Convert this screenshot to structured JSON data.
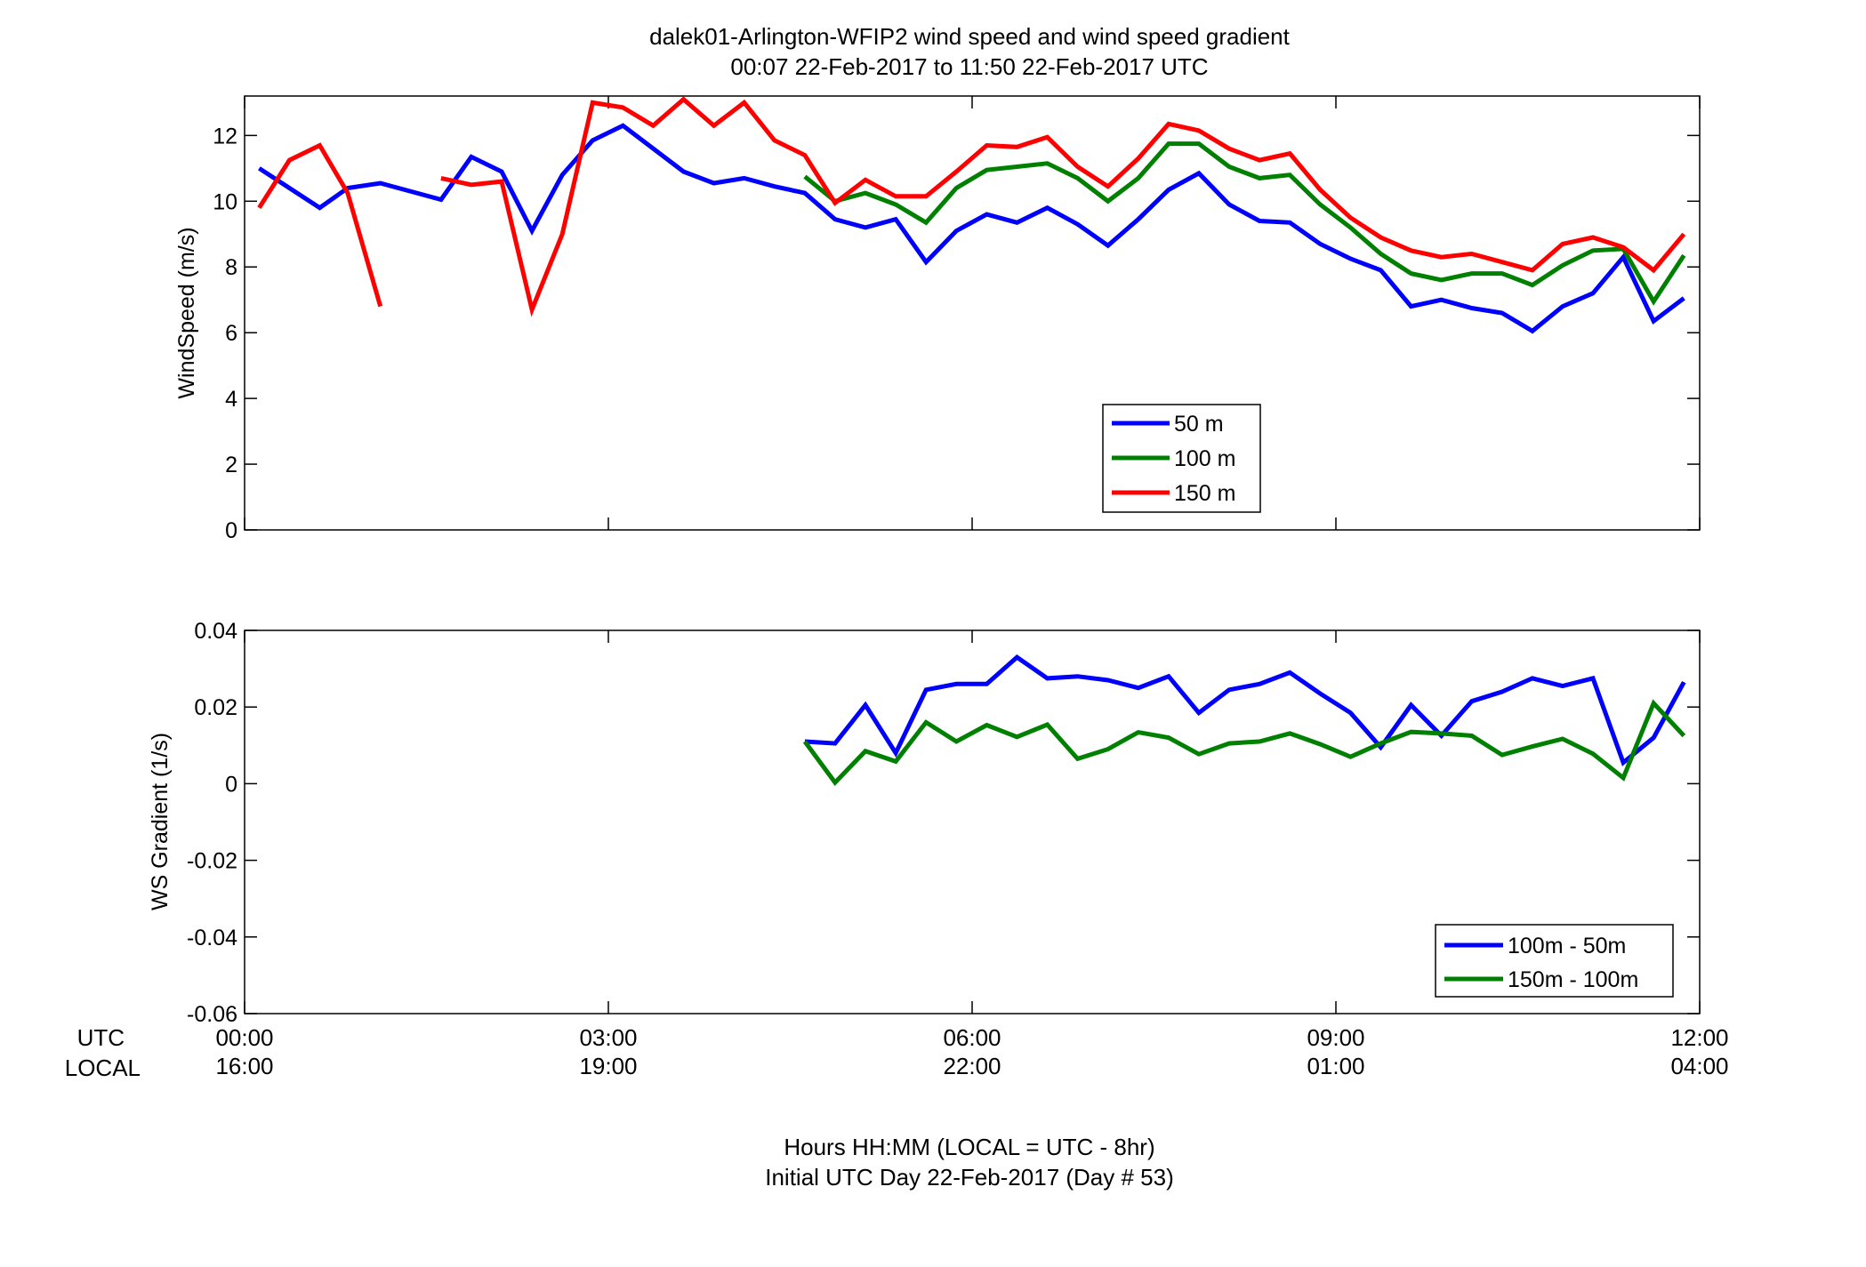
{
  "title_line1": "dalek01-Arlington-WFIP2  wind speed and wind speed gradient",
  "title_line2": "00:07 22-Feb-2017 to 11:50 22-Feb-2017  UTC",
  "xlabel_line1": "Hours HH:MM  (LOCAL = UTC - 8hr)",
  "xlabel_line2": "Initial UTC Day 22-Feb-2017 (Day # 53)",
  "utc_label": "UTC",
  "local_label": "LOCAL",
  "x_ticks_utc": [
    "00:00",
    "03:00",
    "06:00",
    "09:00",
    "12:00"
  ],
  "x_ticks_local": [
    "16:00",
    "19:00",
    "22:00",
    "01:00",
    "04:00"
  ],
  "colors": {
    "blue": "#0000ff",
    "green": "#008000",
    "red": "#ff0000"
  },
  "chart_data": [
    {
      "type": "line",
      "ylabel": "WindSpeed (m/s)",
      "ylim": [
        0,
        13.2
      ],
      "yticks": [
        0,
        2,
        4,
        6,
        8,
        10,
        12
      ],
      "xlim_hours": [
        0,
        12
      ],
      "legend_position": "lower-right",
      "series": [
        {
          "name": "50 m",
          "color": "#0000ff",
          "x": [
            0.12,
            0.37,
            0.62,
            0.85,
            1.12,
            1.62,
            1.87,
            2.12,
            2.37,
            2.62,
            2.87,
            3.12,
            3.62,
            3.87,
            4.12,
            4.37,
            4.62,
            4.87,
            5.12,
            5.37,
            5.62,
            5.87,
            6.12,
            6.37,
            6.62,
            6.87,
            7.12,
            7.37,
            7.62,
            7.87,
            8.12,
            8.37,
            8.62,
            8.87,
            9.12,
            9.37,
            9.62,
            9.87,
            10.12,
            10.37,
            10.62,
            10.87,
            11.12,
            11.37,
            11.62,
            11.87
          ],
          "y": [
            11.0,
            10.4,
            9.8,
            10.4,
            10.55,
            10.05,
            11.35,
            10.9,
            9.1,
            10.8,
            11.85,
            12.3,
            10.9,
            10.55,
            10.7,
            10.45,
            10.25,
            9.45,
            9.2,
            9.45,
            8.15,
            9.1,
            9.6,
            9.35,
            9.8,
            9.3,
            8.65,
            9.45,
            10.35,
            10.85,
            9.9,
            9.4,
            9.35,
            8.7,
            8.25,
            7.9,
            6.8,
            7.0,
            6.75,
            6.6,
            6.05,
            6.8,
            7.2,
            8.3,
            6.35,
            7.05
          ]
        },
        {
          "name": "100 m",
          "color": "#008000",
          "x": [
            4.62,
            4.87,
            5.12,
            5.37,
            5.62,
            5.87,
            6.12,
            6.37,
            6.62,
            6.87,
            7.12,
            7.37,
            7.62,
            7.87,
            8.12,
            8.37,
            8.62,
            8.87,
            9.12,
            9.37,
            9.62,
            9.87,
            10.12,
            10.37,
            10.62,
            10.87,
            11.12,
            11.37,
            11.62,
            11.87
          ],
          "y": [
            10.75,
            10.0,
            10.25,
            9.9,
            9.35,
            10.4,
            10.95,
            11.05,
            11.15,
            10.7,
            10.0,
            10.7,
            11.75,
            11.75,
            11.05,
            10.7,
            10.8,
            9.9,
            9.2,
            8.4,
            7.8,
            7.6,
            7.8,
            7.8,
            7.45,
            8.05,
            8.5,
            8.55,
            6.95,
            8.35
          ]
        },
        {
          "name": "150 m",
          "color": "#ff0000",
          "x": [
            [
              0.12,
              0.37,
              0.62,
              0.85,
              1.12
            ],
            [
              1.62,
              1.87,
              2.12,
              2.37,
              2.62,
              2.87,
              3.12,
              3.37,
              3.62,
              3.87,
              4.12,
              4.37,
              4.62,
              4.87,
              5.12,
              5.37,
              5.62,
              5.87,
              6.12,
              6.37,
              6.62,
              6.87,
              7.12,
              7.37,
              7.62,
              7.87,
              8.12,
              8.37,
              8.62,
              8.87,
              9.12,
              9.37,
              9.62,
              9.87,
              10.12,
              10.37,
              10.62,
              10.87,
              11.12,
              11.37,
              11.62,
              11.87
            ]
          ],
          "y": [
            [
              9.8,
              11.25,
              11.7,
              10.25,
              6.8
            ],
            [
              10.7,
              10.5,
              10.6,
              6.7,
              9.0,
              13.0,
              12.85,
              12.3,
              13.1,
              12.3,
              13.0,
              11.85,
              11.4,
              9.95,
              10.65,
              10.15,
              10.15,
              10.9,
              11.7,
              11.65,
              11.95,
              11.05,
              10.45,
              11.3,
              12.35,
              12.15,
              11.6,
              11.25,
              11.45,
              10.35,
              9.5,
              8.9,
              8.5,
              8.3,
              8.4,
              8.15,
              7.9,
              8.7,
              8.9,
              8.6,
              7.9,
              9.0
            ]
          ]
        }
      ]
    },
    {
      "type": "line",
      "ylabel": "WS Gradient (1/s)",
      "ylim": [
        -0.06,
        0.04
      ],
      "yticks": [
        -0.06,
        -0.04,
        -0.02,
        0,
        0.02,
        0.04
      ],
      "ytick_labels": [
        "-0.06",
        "-0.04",
        "-0.02",
        "0",
        "0.02",
        "0.04"
      ],
      "xlim_hours": [
        0,
        12
      ],
      "legend_position": "lower-right",
      "series": [
        {
          "name": "100m - 50m",
          "color": "#0000ff",
          "x": [
            4.62,
            4.87,
            5.12,
            5.37,
            5.62,
            5.87,
            6.12,
            6.37,
            6.62,
            6.87,
            7.12,
            7.37,
            7.62,
            7.87,
            8.12,
            8.37,
            8.62,
            8.87,
            9.12,
            9.37,
            9.62,
            9.87,
            10.12,
            10.37,
            10.62,
            10.87,
            11.12,
            11.37,
            11.62,
            11.87
          ],
          "y": [
            0.011,
            0.0105,
            0.0205,
            0.008,
            0.0245,
            0.026,
            0.026,
            0.033,
            0.0275,
            0.028,
            0.027,
            0.025,
            0.028,
            0.0185,
            0.0245,
            0.026,
            0.029,
            0.0235,
            0.0185,
            0.0095,
            0.0205,
            0.0125,
            0.0215,
            0.024,
            0.0275,
            0.0255,
            0.0275,
            0.0055,
            0.012,
            0.0265
          ]
        },
        {
          "name": "150m - 100m",
          "color": "#008000",
          "x": [
            4.62,
            4.87,
            5.12,
            5.37,
            5.62,
            5.87,
            6.12,
            6.37,
            6.62,
            6.87,
            7.12,
            7.37,
            7.62,
            7.87,
            8.12,
            8.37,
            8.62,
            8.87,
            9.12,
            9.37,
            9.62,
            9.87,
            10.12,
            10.37,
            10.62,
            10.87,
            11.12,
            11.37,
            11.62,
            11.87
          ],
          "y": [
            0.011,
            0.0003,
            0.0085,
            0.0058,
            0.016,
            0.011,
            0.0153,
            0.0122,
            0.0154,
            0.0065,
            0.009,
            0.0134,
            0.012,
            0.0077,
            0.0105,
            0.011,
            0.0131,
            0.0103,
            0.007,
            0.0105,
            0.0135,
            0.0131,
            0.0125,
            0.0075,
            0.0097,
            0.0117,
            0.0078,
            0.0015,
            0.021,
            0.0125
          ]
        }
      ]
    }
  ]
}
